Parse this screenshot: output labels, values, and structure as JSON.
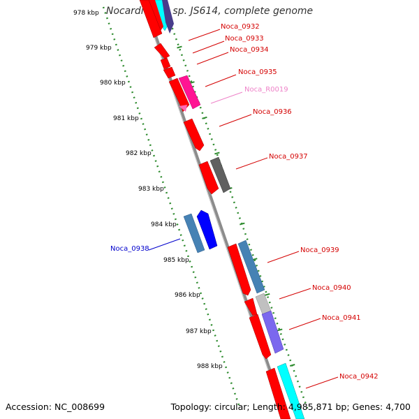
{
  "title": "Nocardioides sp. JS614, complete genome",
  "footer": {
    "accession_label": "Accession:",
    "accession": "NC_008699",
    "stats": "Topology: circular; Length: 4,985,871 bp; Genes: 4,700"
  },
  "ticks": [
    "978 kbp",
    "979 kbp",
    "980 kbp",
    "981 kbp",
    "982 kbp",
    "983 kbp",
    "984 kbp",
    "985 kbp",
    "986 kbp",
    "987 kbp",
    "988 kbp"
  ],
  "genes": [
    {
      "label": "Noca_0932",
      "color": "#d40000"
    },
    {
      "label": "Noca_0933",
      "color": "#d40000"
    },
    {
      "label": "Noca_0934",
      "color": "#d40000"
    },
    {
      "label": "Noca_0935",
      "color": "#d40000"
    },
    {
      "label": "Noca_R0019",
      "color": "#ee82c8"
    },
    {
      "label": "Noca_0936",
      "color": "#d40000"
    },
    {
      "label": "Noca_0937",
      "color": "#d40000"
    },
    {
      "label": "Noca_0938",
      "color": "#0000cc"
    },
    {
      "label": "Noca_0939",
      "color": "#d40000"
    },
    {
      "label": "Noca_0940",
      "color": "#d40000"
    },
    {
      "label": "Noca_0941",
      "color": "#d40000"
    },
    {
      "label": "Noca_0942",
      "color": "#d40000"
    }
  ],
  "colors": {
    "backbone": "#8c8c8c",
    "tick_track": "#2e8b2e",
    "cds_red": "#ff0000",
    "cds_blue": "#0000ff",
    "cds_steel": "#4682b4",
    "cds_gray": "#606060",
    "cds_lightgray": "#c0c0c0",
    "cds_magenta": "#ff1493",
    "cds_pink": "#ff69b4",
    "cds_slate": "#7b68ee",
    "cds_cyan": "#00ffff",
    "cds_navy": "#483d8b"
  }
}
